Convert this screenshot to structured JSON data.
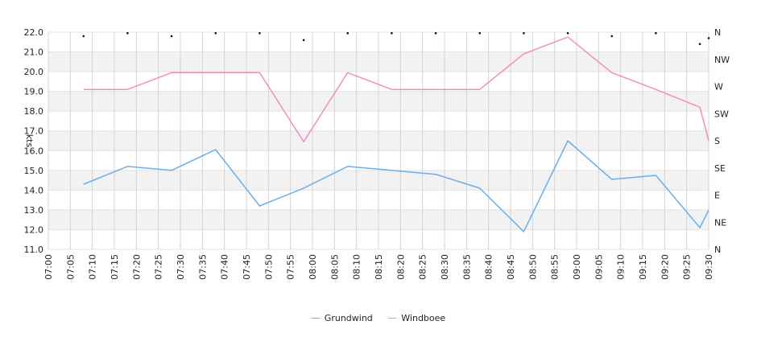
{
  "chart_data": {
    "type": "line",
    "ylabel": "kts",
    "ylim": [
      11,
      22
    ],
    "y_ticks": [
      "11.0",
      "12.0",
      "13.0",
      "14.0",
      "15.0",
      "16.0",
      "17.0",
      "18.0",
      "19.0",
      "20.0",
      "21.0",
      "22.0"
    ],
    "x_ticks": [
      "07:00",
      "07:05",
      "07:10",
      "07:15",
      "07:20",
      "07:25",
      "07:30",
      "07:35",
      "07:40",
      "07:45",
      "07:50",
      "07:55",
      "08:00",
      "08:05",
      "08:10",
      "08:15",
      "08:20",
      "08:25",
      "08:30",
      "08:35",
      "08:40",
      "08:45",
      "08:50",
      "08:55",
      "09:00",
      "09:05",
      "09:10",
      "09:15",
      "09:20",
      "09:25",
      "09:30"
    ],
    "right_axis_ticks": [
      "N",
      "NE",
      "E",
      "SE",
      "S",
      "SW",
      "W",
      "NW",
      "N"
    ],
    "series": [
      {
        "name": "Grundwind",
        "color": "#6aaeea",
        "x": [
          "07:08",
          "07:18",
          "07:28",
          "07:38",
          "07:48",
          "07:58",
          "08:08",
          "08:18",
          "08:28",
          "08:38",
          "08:48",
          "08:58",
          "09:08",
          "09:18",
          "09:28",
          "09:30"
        ],
        "y": [
          14.3,
          15.2,
          15.0,
          16.05,
          13.2,
          14.1,
          15.2,
          15.0,
          14.8,
          14.1,
          11.9,
          16.5,
          14.55,
          14.75,
          12.1,
          13.0
        ]
      },
      {
        "name": "Windboee",
        "color": "#ef8fbf",
        "x": [
          "07:08",
          "07:18",
          "07:28",
          "07:38",
          "07:48",
          "07:58",
          "08:08",
          "08:18",
          "08:28",
          "08:38",
          "08:48",
          "08:58",
          "09:08",
          "09:18",
          "09:28",
          "09:30"
        ],
        "y": [
          19.1,
          19.1,
          19.95,
          19.95,
          19.95,
          16.45,
          19.95,
          19.1,
          19.1,
          19.1,
          20.9,
          21.75,
          19.95,
          19.1,
          18.2,
          16.5
        ]
      }
    ],
    "direction_markers": {
      "x": [
        "07:08",
        "07:18",
        "07:28",
        "07:38",
        "07:48",
        "07:58",
        "08:08",
        "08:18",
        "08:28",
        "08:38",
        "08:48",
        "08:58",
        "09:08",
        "09:18",
        "09:28",
        "09:30"
      ],
      "y": [
        21.8,
        21.95,
        21.8,
        21.95,
        21.95,
        21.6,
        21.95,
        21.95,
        21.95,
        21.95,
        21.95,
        21.95,
        21.8,
        21.95,
        21.4,
        21.7
      ]
    },
    "grid": true,
    "legend_position": "bottom"
  }
}
